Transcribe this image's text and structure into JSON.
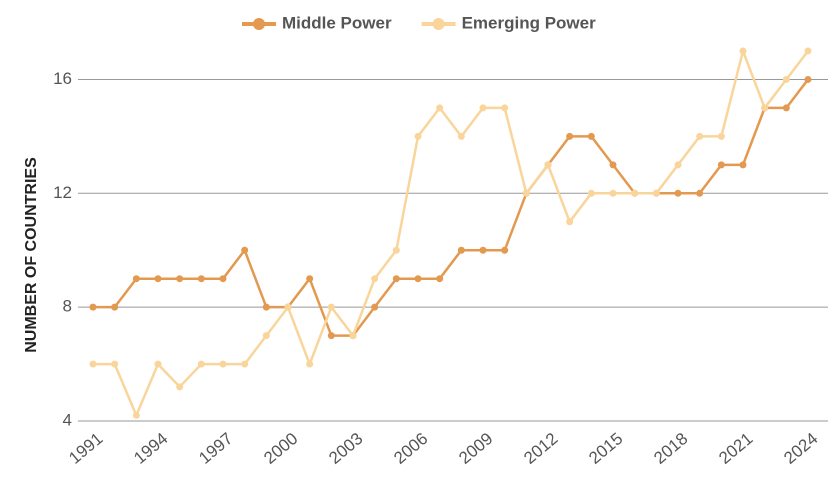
{
  "chart_data": {
    "type": "line",
    "y_label": "NUMBER OF COUNTRIES",
    "categories": [
      "1991",
      null,
      null,
      "1994",
      null,
      null,
      "1997",
      null,
      null,
      "2000",
      null,
      null,
      "2003",
      null,
      null,
      "2006",
      null,
      null,
      "2009",
      null,
      null,
      "2012",
      null,
      null,
      "2015",
      null,
      null,
      "2018",
      null,
      null,
      "2021",
      null,
      null,
      "2024"
    ],
    "series": [
      {
        "name": "Middle Power",
        "color": "#e3994f",
        "values": [
          8,
          8,
          9,
          9,
          9,
          9,
          9,
          10,
          8,
          8,
          9,
          7,
          7,
          8,
          9,
          9,
          9,
          10,
          10,
          10,
          12,
          13,
          14,
          14,
          13,
          12,
          12,
          12,
          12,
          13,
          13,
          15,
          15,
          16
        ]
      },
      {
        "name": "Emerging Power",
        "color": "#f9d59b",
        "values": [
          6,
          6,
          4.2,
          6,
          5.2,
          6,
          6,
          6,
          7,
          8,
          6,
          8,
          7,
          9,
          10,
          14,
          15,
          14,
          15,
          15,
          12,
          13,
          11,
          12,
          12,
          12,
          12,
          13,
          14,
          14,
          17,
          15,
          16,
          17
        ]
      }
    ],
    "ylim": [
      4,
      17
    ],
    "yticks": [
      4,
      8,
      12,
      16
    ],
    "grid": true,
    "legend": "top"
  }
}
